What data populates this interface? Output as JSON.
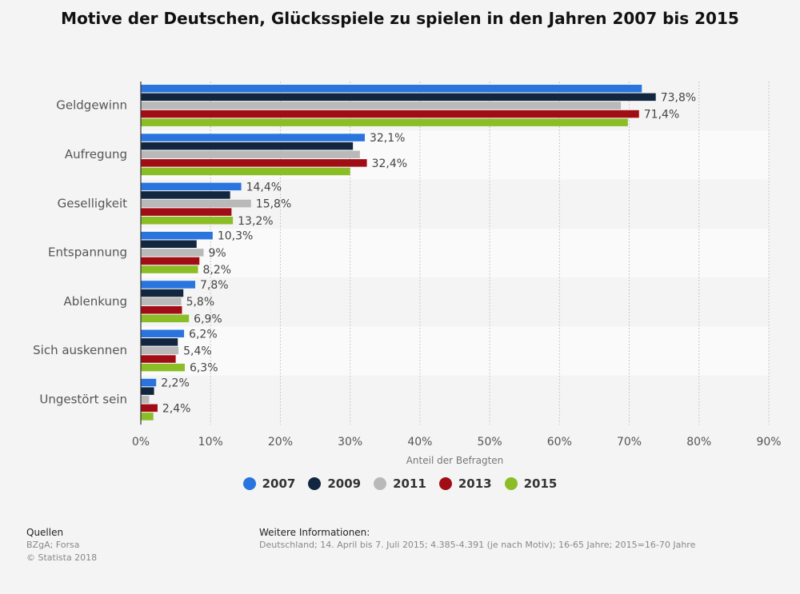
{
  "chart_data": {
    "type": "bar",
    "orientation": "horizontal",
    "title": "Motive der Deutschen, Glücksspiele zu spielen in den Jahren 2007 bis 2015",
    "xlabel": "Anteil der Befragten",
    "ylabel": "",
    "xlim": [
      0,
      90
    ],
    "xticks": [
      "0%",
      "10%",
      "20%",
      "30%",
      "40%",
      "50%",
      "60%",
      "70%",
      "80%",
      "90%"
    ],
    "grid": true,
    "legend_position": "bottom",
    "categories": [
      "Geldgewinn",
      "Aufregung",
      "Geselligkeit",
      "Entspannung",
      "Ablenkung",
      "Sich auskennen",
      "Ungestört sein"
    ],
    "series": [
      {
        "name": "2007",
        "color": "#2a74de",
        "values": [
          71.8,
          32.1,
          14.4,
          10.3,
          7.8,
          6.2,
          2.2
        ],
        "labels": [
          "",
          "32,1%",
          "14,4%",
          "10,3%",
          "7,8%",
          "6,2%",
          "2,2%"
        ]
      },
      {
        "name": "2009",
        "color": "#12263f",
        "values": [
          73.8,
          30.4,
          12.8,
          8.0,
          6.1,
          5.3,
          1.9
        ],
        "labels": [
          "73,8%",
          "",
          "",
          "",
          "",
          "",
          ""
        ]
      },
      {
        "name": "2011",
        "color": "#b9b9b9",
        "values": [
          68.8,
          31.4,
          15.8,
          9.0,
          5.8,
          5.4,
          1.2
        ],
        "labels": [
          "",
          "",
          "15,8%",
          "9%",
          "5,8%",
          "5,4%",
          ""
        ]
      },
      {
        "name": "2013",
        "color": "#a10d15",
        "values": [
          71.4,
          32.4,
          13.0,
          8.4,
          5.9,
          5.0,
          2.4
        ],
        "labels": [
          "71,4%",
          "32,4%",
          "",
          "",
          "",
          "",
          "2,4%"
        ]
      },
      {
        "name": "2015",
        "color": "#8bbd26",
        "values": [
          69.8,
          30.0,
          13.2,
          8.2,
          6.9,
          6.3,
          1.8
        ],
        "labels": [
          "",
          "",
          "13,2%",
          "8,2%",
          "6,9%",
          "6,3%",
          ""
        ]
      }
    ]
  },
  "footer": {
    "sources_head": "Quellen",
    "sources_line1": "BZgA; Forsa",
    "sources_line2": "© Statista 2018",
    "info_head": "Weitere Informationen:",
    "info_text": "Deutschland; 14. April bis 7. Juli 2015; 4.385-4.391 (je nach Motiv); 16-65 Jahre; 2015=16-70 Jahre"
  }
}
